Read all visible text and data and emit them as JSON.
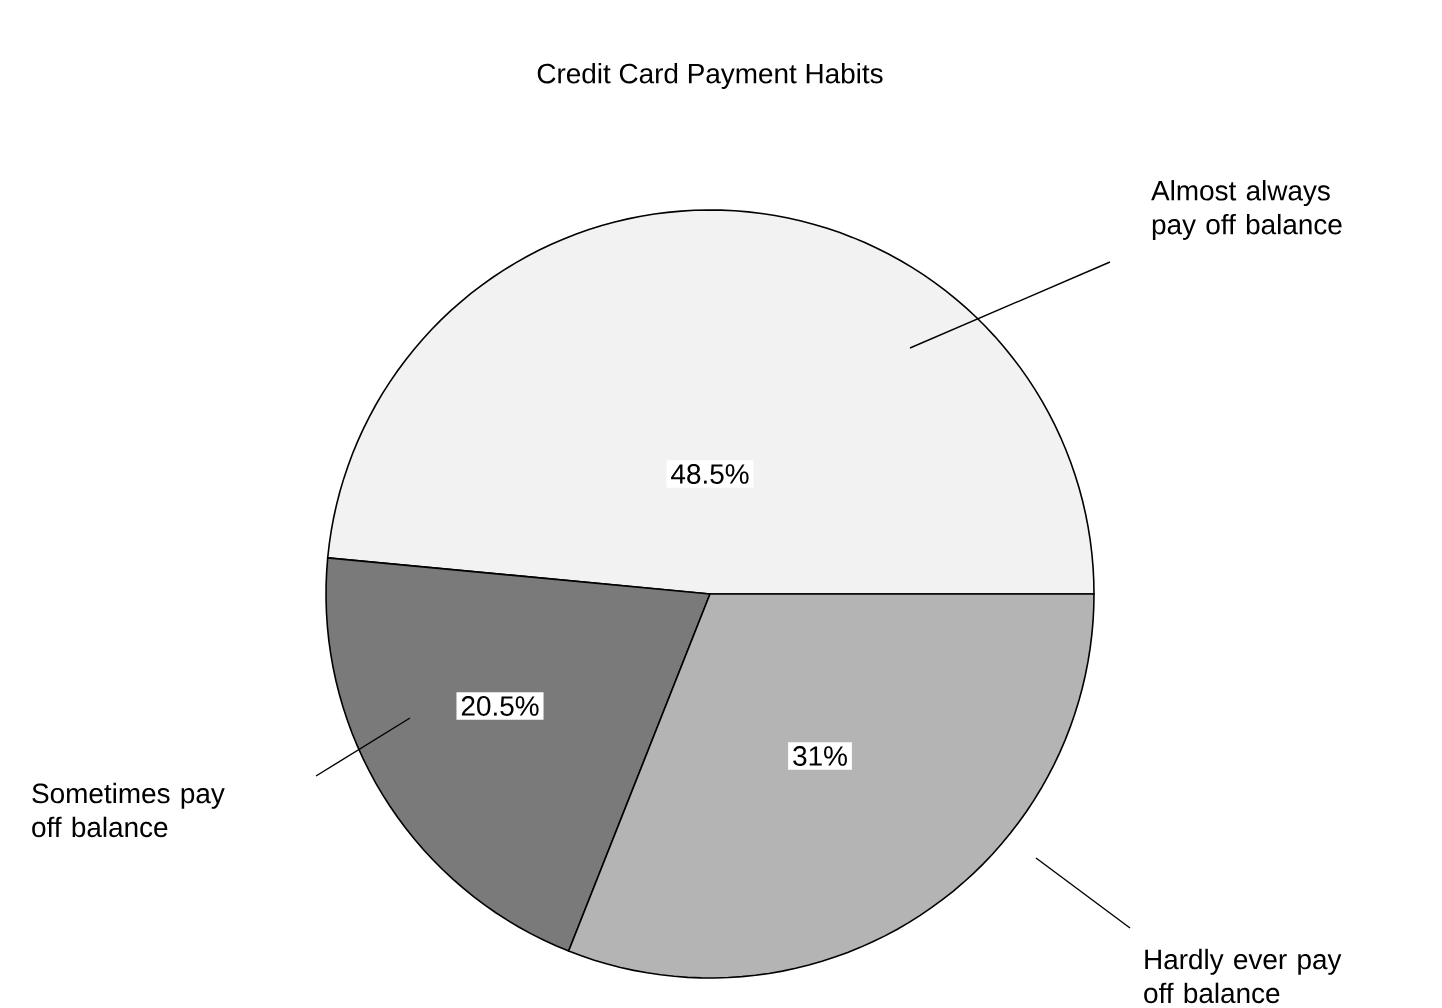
{
  "chart_data": {
    "type": "pie",
    "title": "Credit Card Payment Habits",
    "categories": [
      "Almost always pay off balance",
      "Sometimes pay off balance",
      "Hardly ever pay off balance"
    ],
    "values": [
      48.5,
      20.5,
      31
    ],
    "value_labels": [
      "48.5%",
      "20.5%",
      "31%"
    ],
    "colors": [
      "#f2f2f2",
      "#7a7a7a",
      "#b4b4b4"
    ],
    "legend": false
  }
}
